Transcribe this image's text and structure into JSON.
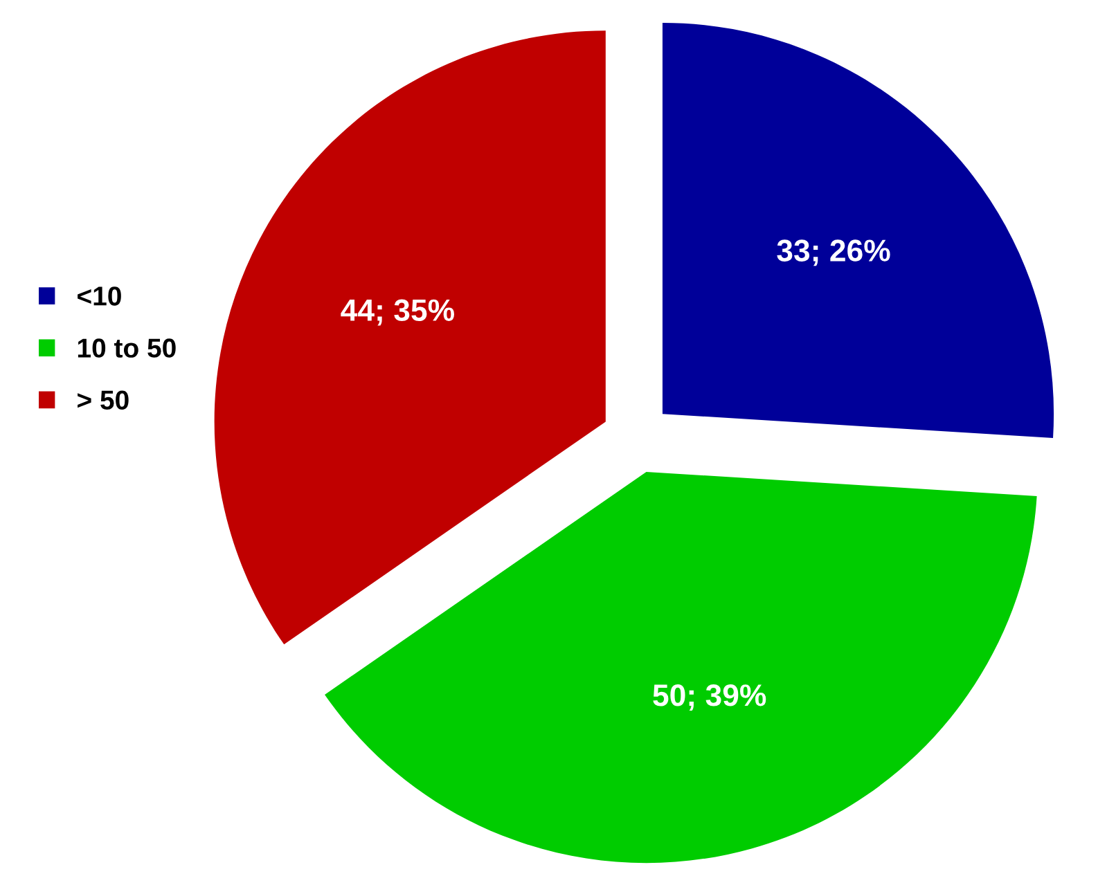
{
  "chart_data": {
    "type": "pie",
    "categories": [
      "<10",
      "10 to 50",
      "> 50"
    ],
    "values": [
      33,
      50,
      44
    ],
    "colors": [
      "#000099",
      "#00cc00",
      "#c00000"
    ],
    "value_labels": [
      "33; 26%",
      "50; 39%",
      "44; 35%"
    ],
    "legend": "left"
  }
}
